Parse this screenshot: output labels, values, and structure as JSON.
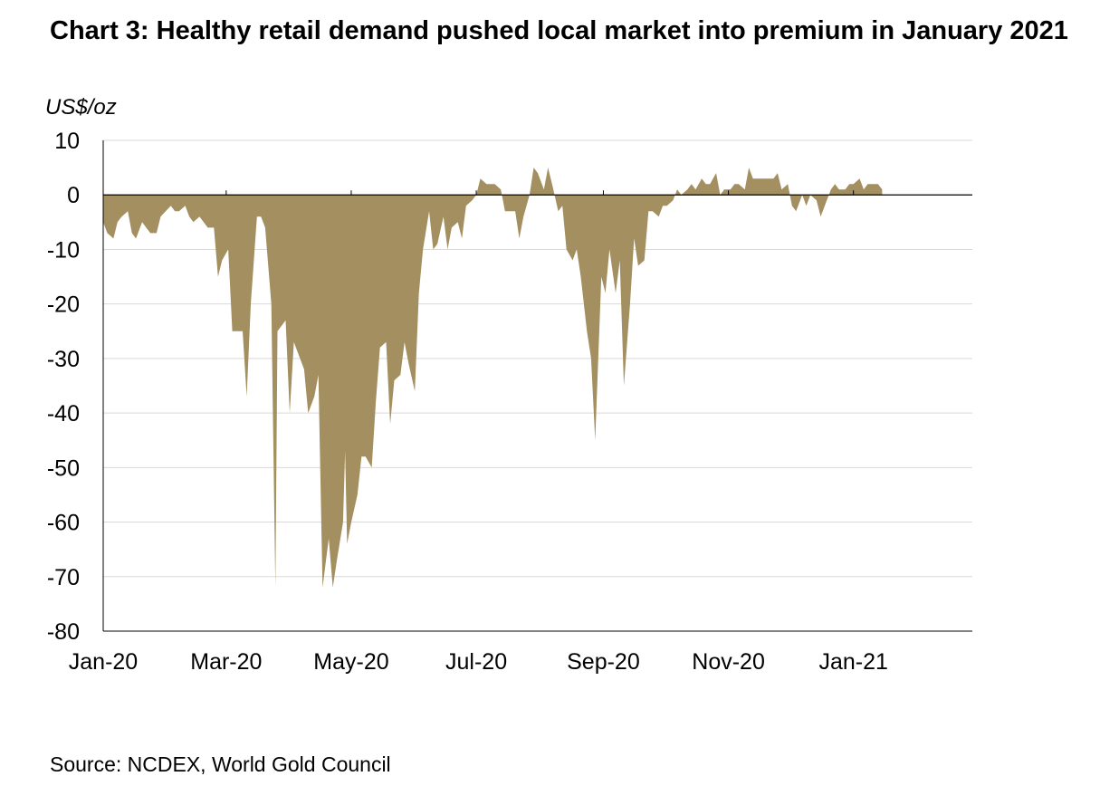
{
  "title": "Chart 3: Healthy retail demand pushed local market into premium in January 2021",
  "source": "Source: NCDEX, World Gold Council",
  "colors": {
    "area": "#A38F5F",
    "grid": "#D9D9D9",
    "axis": "#000000"
  },
  "chart_data": {
    "type": "area",
    "title": "Chart 3: Healthy retail demand pushed local market into premium in January 2021",
    "ylabel": "US$/oz",
    "xlabel": "",
    "ylim": [
      -80,
      10
    ],
    "xlim": [
      "2020-01-01",
      "2021-02-28"
    ],
    "y_ticks": [
      10,
      0,
      -10,
      -20,
      -30,
      -40,
      -50,
      -60,
      -70,
      -80
    ],
    "x_ticks": [
      {
        "date": "2020-01-01",
        "label": "Jan-20"
      },
      {
        "date": "2020-03-01",
        "label": "Mar-20"
      },
      {
        "date": "2020-05-01",
        "label": "May-20"
      },
      {
        "date": "2020-07-01",
        "label": "Jul-20"
      },
      {
        "date": "2020-09-01",
        "label": "Sep-20"
      },
      {
        "date": "2020-11-01",
        "label": "Nov-20"
      },
      {
        "date": "2021-01-01",
        "label": "Jan-21"
      }
    ],
    "grid": true,
    "legend": "none",
    "series": [
      {
        "values": [
          {
            "x": "2020-01-01",
            "y": -5
          },
          {
            "x": "2020-01-03",
            "y": -7
          },
          {
            "x": "2020-01-06",
            "y": -8
          },
          {
            "x": "2020-01-08",
            "y": -5
          },
          {
            "x": "2020-01-10",
            "y": -4
          },
          {
            "x": "2020-01-13",
            "y": -3
          },
          {
            "x": "2020-01-15",
            "y": -7
          },
          {
            "x": "2020-01-17",
            "y": -8
          },
          {
            "x": "2020-01-20",
            "y": -5
          },
          {
            "x": "2020-01-22",
            "y": -6
          },
          {
            "x": "2020-01-24",
            "y": -7
          },
          {
            "x": "2020-01-27",
            "y": -7
          },
          {
            "x": "2020-01-29",
            "y": -4
          },
          {
            "x": "2020-02-03",
            "y": -2
          },
          {
            "x": "2020-02-05",
            "y": -3
          },
          {
            "x": "2020-02-07",
            "y": -3
          },
          {
            "x": "2020-02-10",
            "y": -2
          },
          {
            "x": "2020-02-12",
            "y": -4
          },
          {
            "x": "2020-02-14",
            "y": -5
          },
          {
            "x": "2020-02-17",
            "y": -4
          },
          {
            "x": "2020-02-19",
            "y": -5
          },
          {
            "x": "2020-02-21",
            "y": -6
          },
          {
            "x": "2020-02-24",
            "y": -6
          },
          {
            "x": "2020-02-26",
            "y": -15
          },
          {
            "x": "2020-02-28",
            "y": -12
          },
          {
            "x": "2020-03-02",
            "y": -10
          },
          {
            "x": "2020-03-04",
            "y": -25
          },
          {
            "x": "2020-03-06",
            "y": -25
          },
          {
            "x": "2020-03-09",
            "y": -25
          },
          {
            "x": "2020-03-11",
            "y": -37
          },
          {
            "x": "2020-03-13",
            "y": -20
          },
          {
            "x": "2020-03-16",
            "y": -4
          },
          {
            "x": "2020-03-18",
            "y": -4
          },
          {
            "x": "2020-03-20",
            "y": -6
          },
          {
            "x": "2020-03-23",
            "y": -20
          },
          {
            "x": "2020-03-25",
            "y": -72
          },
          {
            "x": "2020-03-26",
            "y": -25
          },
          {
            "x": "2020-03-30",
            "y": -23
          },
          {
            "x": "2020-04-01",
            "y": -40
          },
          {
            "x": "2020-04-03",
            "y": -27
          },
          {
            "x": "2020-04-06",
            "y": -30
          },
          {
            "x": "2020-04-08",
            "y": -32
          },
          {
            "x": "2020-04-10",
            "y": -40
          },
          {
            "x": "2020-04-13",
            "y": -37
          },
          {
            "x": "2020-04-15",
            "y": -33
          },
          {
            "x": "2020-04-17",
            "y": -72
          },
          {
            "x": "2020-04-20",
            "y": -63
          },
          {
            "x": "2020-04-22",
            "y": -72
          },
          {
            "x": "2020-04-24",
            "y": -67
          },
          {
            "x": "2020-04-27",
            "y": -60
          },
          {
            "x": "2020-04-28",
            "y": -47
          },
          {
            "x": "2020-04-29",
            "y": -64
          },
          {
            "x": "2020-05-01",
            "y": -60
          },
          {
            "x": "2020-05-04",
            "y": -55
          },
          {
            "x": "2020-05-06",
            "y": -48
          },
          {
            "x": "2020-05-08",
            "y": -48
          },
          {
            "x": "2020-05-11",
            "y": -50
          },
          {
            "x": "2020-05-13",
            "y": -38
          },
          {
            "x": "2020-05-15",
            "y": -28
          },
          {
            "x": "2020-05-18",
            "y": -27
          },
          {
            "x": "2020-05-20",
            "y": -42
          },
          {
            "x": "2020-05-22",
            "y": -34
          },
          {
            "x": "2020-05-25",
            "y": -33
          },
          {
            "x": "2020-05-27",
            "y": -27
          },
          {
            "x": "2020-05-29",
            "y": -31
          },
          {
            "x": "2020-06-01",
            "y": -36
          },
          {
            "x": "2020-06-03",
            "y": -18
          },
          {
            "x": "2020-06-05",
            "y": -10
          },
          {
            "x": "2020-06-08",
            "y": -3
          },
          {
            "x": "2020-06-10",
            "y": -10
          },
          {
            "x": "2020-06-12",
            "y": -9
          },
          {
            "x": "2020-06-15",
            "y": -4
          },
          {
            "x": "2020-06-17",
            "y": -10
          },
          {
            "x": "2020-06-19",
            "y": -6
          },
          {
            "x": "2020-06-22",
            "y": -5
          },
          {
            "x": "2020-06-24",
            "y": -8
          },
          {
            "x": "2020-06-26",
            "y": -2
          },
          {
            "x": "2020-06-29",
            "y": -1
          },
          {
            "x": "2020-07-01",
            "y": 0
          },
          {
            "x": "2020-07-03",
            "y": 3
          },
          {
            "x": "2020-07-06",
            "y": 2
          },
          {
            "x": "2020-07-10",
            "y": 2
          },
          {
            "x": "2020-07-13",
            "y": 1
          },
          {
            "x": "2020-07-15",
            "y": -3
          },
          {
            "x": "2020-07-17",
            "y": -3
          },
          {
            "x": "2020-07-20",
            "y": -3
          },
          {
            "x": "2020-07-22",
            "y": -8
          },
          {
            "x": "2020-07-24",
            "y": -4
          },
          {
            "x": "2020-07-27",
            "y": 0
          },
          {
            "x": "2020-07-29",
            "y": 5
          },
          {
            "x": "2020-07-31",
            "y": 4
          },
          {
            "x": "2020-08-03",
            "y": 1
          },
          {
            "x": "2020-08-05",
            "y": 5
          },
          {
            "x": "2020-08-07",
            "y": 2
          },
          {
            "x": "2020-08-10",
            "y": -3
          },
          {
            "x": "2020-08-12",
            "y": -2
          },
          {
            "x": "2020-08-14",
            "y": -10
          },
          {
            "x": "2020-08-17",
            "y": -12
          },
          {
            "x": "2020-08-19",
            "y": -10
          },
          {
            "x": "2020-08-21",
            "y": -15
          },
          {
            "x": "2020-08-24",
            "y": -25
          },
          {
            "x": "2020-08-26",
            "y": -30
          },
          {
            "x": "2020-08-28",
            "y": -45
          },
          {
            "x": "2020-08-31",
            "y": -15
          },
          {
            "x": "2020-09-02",
            "y": -18
          },
          {
            "x": "2020-09-04",
            "y": -10
          },
          {
            "x": "2020-09-07",
            "y": -18
          },
          {
            "x": "2020-09-09",
            "y": -12
          },
          {
            "x": "2020-09-11",
            "y": -35
          },
          {
            "x": "2020-09-14",
            "y": -20
          },
          {
            "x": "2020-09-16",
            "y": -8
          },
          {
            "x": "2020-09-18",
            "y": -13
          },
          {
            "x": "2020-09-21",
            "y": -12
          },
          {
            "x": "2020-09-23",
            "y": -3
          },
          {
            "x": "2020-09-25",
            "y": -3
          },
          {
            "x": "2020-09-28",
            "y": -4
          },
          {
            "x": "2020-09-30",
            "y": -2
          },
          {
            "x": "2020-10-02",
            "y": -2
          },
          {
            "x": "2020-10-05",
            "y": -1
          },
          {
            "x": "2020-10-07",
            "y": 1
          },
          {
            "x": "2020-10-09",
            "y": 0
          },
          {
            "x": "2020-10-12",
            "y": 1
          },
          {
            "x": "2020-10-14",
            "y": 2
          },
          {
            "x": "2020-10-16",
            "y": 1
          },
          {
            "x": "2020-10-19",
            "y": 3
          },
          {
            "x": "2020-10-21",
            "y": 2
          },
          {
            "x": "2020-10-23",
            "y": 2
          },
          {
            "x": "2020-10-26",
            "y": 4
          },
          {
            "x": "2020-10-28",
            "y": 0
          },
          {
            "x": "2020-10-30",
            "y": 1
          },
          {
            "x": "2020-11-02",
            "y": 1
          },
          {
            "x": "2020-11-04",
            "y": 2
          },
          {
            "x": "2020-11-06",
            "y": 2
          },
          {
            "x": "2020-11-09",
            "y": 1
          },
          {
            "x": "2020-11-11",
            "y": 5
          },
          {
            "x": "2020-11-13",
            "y": 3
          },
          {
            "x": "2020-11-16",
            "y": 3
          },
          {
            "x": "2020-11-18",
            "y": 3
          },
          {
            "x": "2020-11-20",
            "y": 3
          },
          {
            "x": "2020-11-23",
            "y": 3
          },
          {
            "x": "2020-11-25",
            "y": 4
          },
          {
            "x": "2020-11-27",
            "y": 1
          },
          {
            "x": "2020-11-30",
            "y": 2
          },
          {
            "x": "2020-12-02",
            "y": -2
          },
          {
            "x": "2020-12-04",
            "y": -3
          },
          {
            "x": "2020-12-07",
            "y": 0
          },
          {
            "x": "2020-12-09",
            "y": -2
          },
          {
            "x": "2020-12-11",
            "y": 0
          },
          {
            "x": "2020-12-14",
            "y": -1
          },
          {
            "x": "2020-12-16",
            "y": -4
          },
          {
            "x": "2020-12-18",
            "y": -2
          },
          {
            "x": "2020-12-21",
            "y": 1
          },
          {
            "x": "2020-12-23",
            "y": 2
          },
          {
            "x": "2020-12-25",
            "y": 1
          },
          {
            "x": "2020-12-28",
            "y": 1
          },
          {
            "x": "2020-12-30",
            "y": 2
          },
          {
            "x": "2021-01-01",
            "y": 2
          },
          {
            "x": "2021-01-04",
            "y": 3
          },
          {
            "x": "2021-01-06",
            "y": 1
          },
          {
            "x": "2021-01-08",
            "y": 2
          },
          {
            "x": "2021-01-11",
            "y": 2
          },
          {
            "x": "2021-01-13",
            "y": 2
          },
          {
            "x": "2021-01-15",
            "y": 1
          }
        ]
      }
    ]
  }
}
